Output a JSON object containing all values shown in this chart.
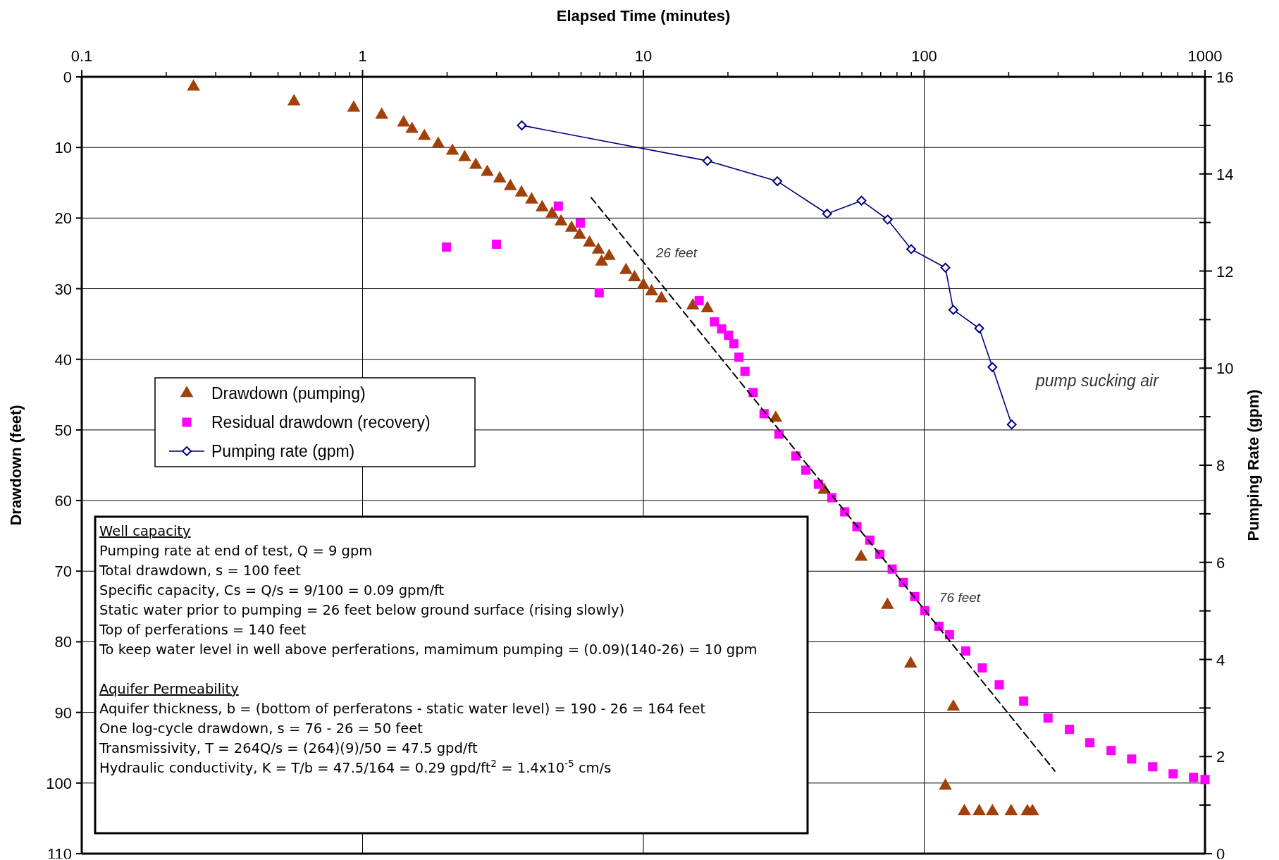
{
  "chart_data": {
    "type": "scatter",
    "xlabel": "Elapsed Time (minutes)",
    "ylabel": "Drawdown (feet)",
    "y2label": "Pumping Rate (gpm)",
    "log": "x",
    "grid": true,
    "legend": "left",
    "xlim": [
      0.1,
      1000
    ],
    "xticks": [
      0.1,
      1,
      10,
      100,
      1000
    ],
    "ylim": [
      110,
      0
    ],
    "yticks": [
      0,
      10,
      20,
      30,
      40,
      50,
      60,
      70,
      80,
      90,
      100,
      110
    ],
    "y2lim": [
      0,
      16
    ],
    "y2ticks": [
      0,
      2,
      4,
      6,
      8,
      10,
      12,
      14,
      16
    ],
    "series": [
      {
        "name": "Drawdown (pumping)",
        "type": "scatter",
        "marker": "triangle",
        "color": "#a0400a",
        "x": [
          0.25,
          0.57,
          0.93,
          1.17,
          1.4,
          1.5,
          1.66,
          1.86,
          2.09,
          2.31,
          2.53,
          2.78,
          3.08,
          3.36,
          3.68,
          4.0,
          4.36,
          4.73,
          5.09,
          5.55,
          5.93,
          6.43,
          6.91,
          7.1,
          7.55,
          8.67,
          9.3,
          10.0,
          10.7,
          11.6,
          15.0,
          16.9,
          29.6,
          44,
          59.6,
          74,
          89.5,
          127,
          119,
          139,
          157,
          175,
          204,
          233,
          243
        ],
        "values": [
          1.4,
          3.5,
          4.4,
          5.4,
          6.5,
          7.4,
          8.4,
          9.5,
          10.5,
          11.4,
          12.5,
          13.5,
          14.4,
          15.5,
          16.4,
          17.4,
          18.5,
          19.4,
          20.5,
          21.4,
          22.4,
          23.5,
          24.5,
          26.2,
          25.4,
          27.4,
          28.4,
          29.5,
          30.4,
          31.4,
          32.4,
          32.8,
          48.3,
          58.5,
          68,
          74.8,
          83.1,
          89.2,
          100.4,
          104,
          104,
          104,
          104,
          104,
          104
        ]
      },
      {
        "name": "Residual drawdown (recovery)",
        "type": "scatter",
        "marker": "square",
        "color": "#ff00ff",
        "x": [
          1.99,
          3.0,
          4.98,
          5.96,
          6.96,
          15.8,
          17.9,
          19.0,
          20.1,
          21.0,
          21.9,
          23.0,
          24.6,
          26.9,
          30.4,
          34.9,
          37.9,
          42.0,
          46.9,
          52.1,
          57.6,
          64,
          69.5,
          76.9,
          84.3,
          92.5,
          100.5,
          112.8,
          123,
          140.6,
          161,
          185,
          226,
          276,
          329,
          389,
          463,
          548,
          651,
          770,
          910,
          1000
        ],
        "values": [
          24.1,
          23.7,
          18.3,
          20.7,
          30.6,
          31.7,
          34.7,
          35.7,
          36.6,
          37.8,
          39.7,
          41.7,
          44.7,
          47.7,
          50.6,
          53.7,
          55.7,
          57.7,
          59.6,
          61.6,
          63.7,
          65.6,
          67.6,
          69.7,
          71.6,
          73.6,
          75.6,
          77.8,
          79.0,
          81.3,
          83.7,
          86.1,
          88.4,
          90.8,
          92.4,
          94.3,
          95.4,
          96.6,
          97.7,
          98.7,
          99.2,
          99.5
        ]
      },
      {
        "name": "Pumping rate (gpm)",
        "type": "line",
        "marker": "diamond",
        "axis": "y2",
        "color": "#000080",
        "x": [
          3.69,
          16.9,
          30.0,
          45.1,
          59.8,
          74.1,
          89.9,
          119,
          127,
          157,
          175,
          205
        ],
        "values": [
          15.0,
          14.27,
          13.85,
          13.18,
          13.45,
          13.06,
          12.45,
          12.07,
          11.2,
          10.82,
          10.02,
          8.84
        ]
      },
      {
        "type": "line",
        "marker": "none",
        "line_style": "dashed",
        "color": "#000000",
        "x": [
          6.52,
          292
        ],
        "values": [
          17.1,
          98.3
        ]
      }
    ],
    "annotations": [
      "26 feet",
      "76 feet",
      "pump sucking air",
      "Well capacity",
      "Pumping rate at end of test, Q = 9 gpm",
      "Total drawdown, s = 100 feet",
      "Specific capacity, Cs = Q/s = 9/100 = 0.09 gpm/ft",
      "Static water prior to pumping = 26 feet below ground surface (rising slowly)",
      "Top of perferations = 140 feet",
      "To keep water level in well above perferations, mamimum pumping = (0.09)(140-26) = 10 gpm",
      "Aquifer Permeability",
      "Aquifer thickness, b = (bottom of perferatons - static water level) = 190 - 26 = 164 feet",
      "One log-cycle drawdown, s = 76 - 26 = 50 feet",
      "Transmissivity, T = 264Q/s = (264)(9)/50 = 47.5 gpd/ft",
      "Hydraulic conductivity, K = T/b = 47.5/164 = 0.29 gpd/ft$^{2}$ = 1.4x10$^{-5}$ cm/s"
    ]
  }
}
